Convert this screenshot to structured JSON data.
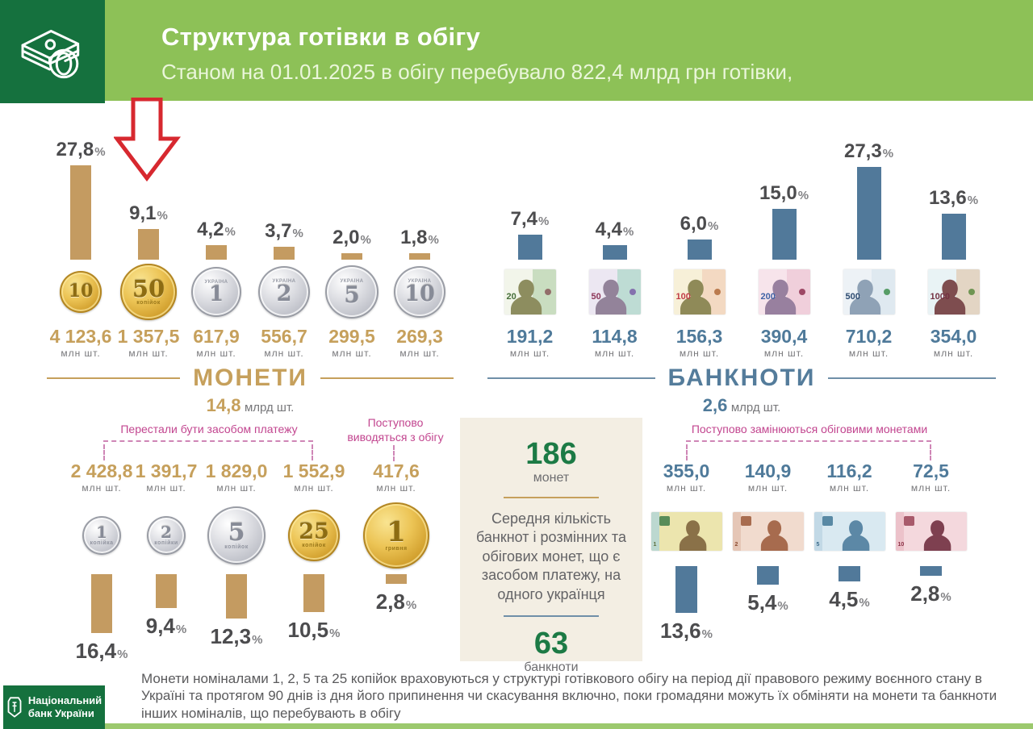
{
  "labels": {
    "percent_sign": "%",
    "mln_unit": "млн шт.",
    "mlrd_unit": "млрд шт."
  },
  "colors": {
    "dark_green": "#15713e",
    "light_green": "#8dc157",
    "gold": "#c49b61",
    "blue": "#51799a",
    "pink": "#c2458f",
    "green_number": "#1c7a45",
    "red_arrow": "#d7282f"
  },
  "header": {
    "title": "Структура готівки в обігу",
    "subtitle": "Станом на 01.01.2025 в обігу перебувало 822,4 млрд грн готівки,"
  },
  "coins_top": {
    "section_title": "МОНЕТИ",
    "total": "14,8",
    "items": [
      {
        "pct": "27,8",
        "count": "4 123,6",
        "face": "10",
        "type": "gold",
        "size": 52,
        "top_caption": "",
        "caption": ""
      },
      {
        "pct": "9,1",
        "count": "1 357,5",
        "face": "50",
        "type": "gold",
        "size": 70,
        "top_caption": "",
        "caption": "копійок"
      },
      {
        "pct": "4,2",
        "count": "617,9",
        "face": "1",
        "type": "silver",
        "size": 62,
        "top_caption": "УКРАЇНА",
        "caption": ""
      },
      {
        "pct": "3,7",
        "count": "556,7",
        "face": "2",
        "type": "silver",
        "size": 64,
        "top_caption": "УКРАЇНА",
        "caption": ""
      },
      {
        "pct": "2,0",
        "count": "299,5",
        "face": "5",
        "type": "silver",
        "size": 66,
        "top_caption": "УКРАЇНА",
        "caption": ""
      },
      {
        "pct": "1,8",
        "count": "269,3",
        "face": "10",
        "type": "silver",
        "size": 64,
        "top_caption": "УКРАЇНА",
        "caption": ""
      }
    ]
  },
  "banknotes_top": {
    "section_title": "БАНКНОТИ",
    "total": "2,6",
    "items": [
      {
        "pct": "7,4",
        "count": "191,2",
        "face": "20",
        "colors": {
          "bg": "#f2f5ea",
          "bg2": "#c9ddc0",
          "bust": "#8d8d5f",
          "num": "#466f3a",
          "accent": "#8a5a5a"
        }
      },
      {
        "pct": "4,4",
        "count": "114,8",
        "face": "50",
        "colors": {
          "bg": "#ece7f2",
          "bg2": "#bedcd4",
          "bust": "#93839a",
          "num": "#8c3558",
          "accent": "#7a5ea7"
        }
      },
      {
        "pct": "6,0",
        "count": "156,3",
        "face": "100",
        "colors": {
          "bg": "#f7f0d8",
          "bg2": "#f3d9c2",
          "bust": "#8f8a58",
          "num": "#c03a45",
          "accent": "#b06a3a"
        }
      },
      {
        "pct": "15,0",
        "count": "390,4",
        "face": "200",
        "colors": {
          "bg": "#f7e4eb",
          "bg2": "#f0cfdb",
          "bust": "#98809f",
          "num": "#3f62a5",
          "accent": "#8e3050"
        }
      },
      {
        "pct": "27,3",
        "count": "710,2",
        "face": "500",
        "colors": {
          "bg": "#edf2f6",
          "bg2": "#dfe9f0",
          "bust": "#8fa2b6",
          "num": "#2c4a70",
          "accent": "#3f8f4f"
        }
      },
      {
        "pct": "13,6",
        "count": "354,0",
        "face": "1000",
        "colors": {
          "bg": "#e9f3f5",
          "bg2": "#e3d5c4",
          "bust": "#7e4d4f",
          "num": "#733042",
          "accent": "#5a8a3f"
        }
      }
    ]
  },
  "coins_bottom": {
    "annotation_main": "Перестали бути засобом платежу",
    "annotation_side": "Поступово виводяться з обігу",
    "items": [
      {
        "pct": "16,4",
        "count": "2 428,8",
        "face": "1",
        "type": "silver",
        "size": 48,
        "top_caption": "",
        "caption": "копійка"
      },
      {
        "pct": "9,4",
        "count": "1 391,7",
        "face": "2",
        "type": "silver",
        "size": 48,
        "top_caption": "",
        "caption": "копійки"
      },
      {
        "pct": "12,3",
        "count": "1 829,0",
        "face": "5",
        "type": "silver",
        "size": 72,
        "top_caption": "",
        "caption": "копійок"
      },
      {
        "pct": "10,5",
        "count": "1 552,9",
        "face": "25",
        "type": "gold",
        "size": 64,
        "top_caption": "",
        "caption": "копійок"
      },
      {
        "pct": "2,8",
        "count": "417,6",
        "face": "1",
        "type": "gold",
        "size": 82,
        "top_caption": "",
        "caption": "гривня"
      }
    ]
  },
  "banknotes_bottom": {
    "annotation": "Поступово замінюються обіговими монетами",
    "items": [
      {
        "pct": "13,6",
        "count": "355,0",
        "face": "1",
        "colors": {
          "bg": "#ece5ae",
          "stripe": "#bcd8d0",
          "emblem": "#48824f",
          "bust": "#8a7148",
          "num": "#5a6b3a"
        }
      },
      {
        "pct": "5,4",
        "count": "140,9",
        "face": "2",
        "colors": {
          "bg": "#f1dbce",
          "stripe": "#e5c6b6",
          "emblem": "#a05f41",
          "bust": "#a76b4e",
          "num": "#8a4a2f"
        }
      },
      {
        "pct": "4,5",
        "count": "116,2",
        "face": "5",
        "colors": {
          "bg": "#d9e9f1",
          "stripe": "#c2d9e6",
          "emblem": "#4a7e9b",
          "bust": "#5c88a6",
          "num": "#3a6a8a"
        }
      },
      {
        "pct": "2,8",
        "count": "72,5",
        "face": "10",
        "colors": {
          "bg": "#f4d8dd",
          "stripe": "#ecc2ca",
          "emblem": "#a04c5e",
          "bust": "#7e4050",
          "num": "#8a3045"
        }
      }
    ]
  },
  "infobox": {
    "coins_value": "186",
    "coins_label": "монет",
    "text": "Середня кількість банкнот і розмінних та обігових монет, що є засобом платежу, на одного українця",
    "banknotes_value": "63",
    "banknotes_label": "банкноти"
  },
  "footer": {
    "note": "Монети номіналами 1, 2, 5 та 25 копійок враховуються у структурі готівкового обігу на період дії правового режиму воєнного стану в Україні та протягом 90 днів із дня його припинення чи скасування включно, поки громадяни можуть їх обміняти на  монети та  банкноти інших номіналів, що перебувають  в  обігу",
    "logo_line1": "Національний",
    "logo_line2": "банк України"
  },
  "chart_data": [
    {
      "type": "bar",
      "title": "МОНЕТИ — частка в обігу, %",
      "categories": [
        "10 коп",
        "50 коп",
        "1 грн",
        "2 грн",
        "5 грн",
        "10 грн"
      ],
      "values": [
        27.8,
        9.1,
        4.2,
        3.7,
        2.0,
        1.8
      ],
      "counts_mln": [
        4123.6,
        1357.5,
        617.9,
        556.7,
        299.5,
        269.3
      ],
      "total": "14,8 млрд шт.",
      "xlabel": "",
      "ylabel": "%",
      "grid": false,
      "legend": "none"
    },
    {
      "type": "bar",
      "title": "БАНКНОТИ — частка в обігу, %",
      "categories": [
        "20 грн",
        "50 грн",
        "100 грн",
        "200 грн",
        "500 грн",
        "1000 грн"
      ],
      "values": [
        7.4,
        4.4,
        6.0,
        15.0,
        27.3,
        13.6
      ],
      "counts_mln": [
        191.2,
        114.8,
        156.3,
        390.4,
        710.2,
        354.0
      ],
      "total": "2,6 млрд шт.",
      "xlabel": "",
      "ylabel": "%",
      "grid": false,
      "legend": "none"
    },
    {
      "type": "bar",
      "title": "Монети, що перестали бути засобом платежу / виводяться з обігу, %",
      "categories": [
        "1 коп",
        "2 коп",
        "5 коп",
        "25 коп",
        "1 грн (стара)"
      ],
      "values": [
        16.4,
        9.4,
        12.3,
        10.5,
        2.8
      ],
      "counts_mln": [
        2428.8,
        1391.7,
        1829.0,
        1552.9,
        417.6
      ],
      "xlabel": "",
      "ylabel": "%",
      "grid": false,
      "legend": "none"
    },
    {
      "type": "bar",
      "title": "Банкноти, що поступово замінюються обіговими монетами, %",
      "categories": [
        "1 грн",
        "2 грн",
        "5 грн",
        "10 грн"
      ],
      "values": [
        13.6,
        5.4,
        4.5,
        2.8
      ],
      "counts_mln": [
        355.0,
        140.9,
        116.2,
        72.5
      ],
      "xlabel": "",
      "ylabel": "%",
      "grid": false,
      "legend": "none"
    }
  ]
}
